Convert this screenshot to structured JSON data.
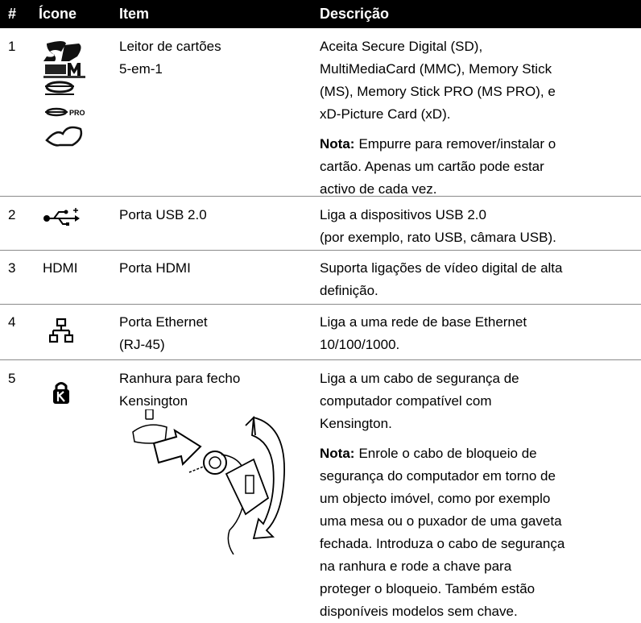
{
  "table": {
    "header": [
      "#",
      "Ícone",
      "Item",
      "Descrição"
    ],
    "rows": [
      {
        "num": "1",
        "icon_text": "PRO",
        "item": [
          "Leitor de cartões",
          "5-em-1"
        ],
        "description": [
          "Aceita Secure Digital (SD),",
          "MultiMediaCard (MMC), Memory Stick",
          "(MS), Memory Stick PRO (MS PRO), e",
          "xD-Picture Card (xD)."
        ],
        "note": {
          "label": "Nota:",
          "lines": [
            "Empurre para remover/instalar o",
            "cartão. Apenas um cartão pode estar",
            "activo de cada vez."
          ]
        }
      },
      {
        "num": "2",
        "item": [
          "Porta USB 2.0"
        ],
        "description": [
          "Liga a dispositivos USB 2.0",
          "(por exemplo, rato USB, câmara USB)."
        ]
      },
      {
        "num": "3",
        "icon_text": "HDMI",
        "item": [
          "Porta HDMI"
        ],
        "description": [
          "Suporta ligações de vídeo digital de alta",
          "definição."
        ]
      },
      {
        "num": "4",
        "item": [
          "Porta Ethernet",
          "(RJ-45)"
        ],
        "description": [
          "Liga a uma rede de base Ethernet",
          "10/100/1000."
        ]
      },
      {
        "num": "5",
        "item": [
          "Ranhura para fecho",
          "Kensington"
        ],
        "description": [
          "Liga a um cabo de segurança de",
          "computador compatível com",
          "Kensington."
        ],
        "note": {
          "label": "Nota:",
          "lines": [
            "Enrole o cabo de bloqueio de",
            "segurança do computador em torno de",
            "um objecto imóvel, como por exemplo",
            "uma mesa ou o puxador de uma gaveta",
            "fechada. Introduza o cabo de segurança",
            "na ranhura e rode a chave para",
            "proteger o bloqueio. Também estão",
            "disponíveis modelos sem chave."
          ]
        }
      }
    ]
  }
}
